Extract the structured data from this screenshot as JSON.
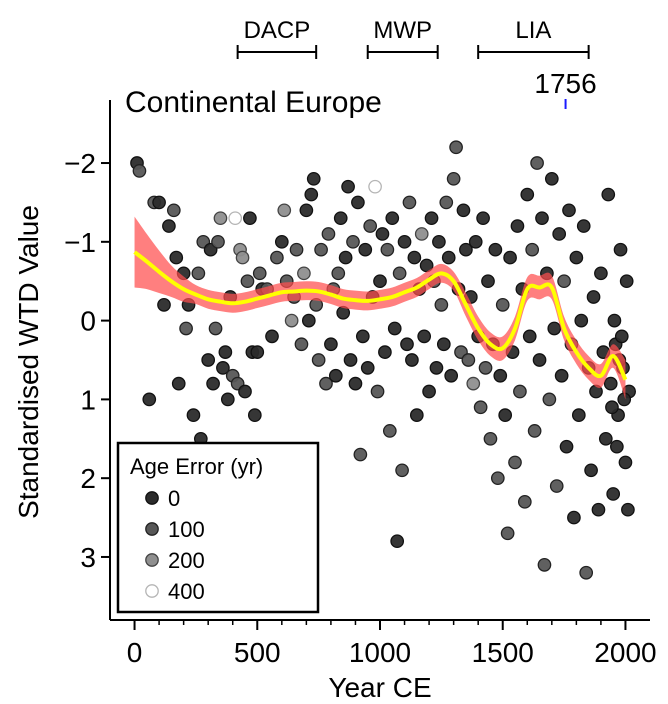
{
  "chart_data": {
    "type": "scatter",
    "title": "Continental Europe",
    "xlabel": "Year CE",
    "ylabel": "Standardised WTD Value",
    "xlim": [
      -100,
      2100
    ],
    "ylim": [
      -2.8,
      3.8
    ],
    "y_inverted": true,
    "xticks": [
      0,
      500,
      1000,
      1500,
      2000
    ],
    "xminorticks": [
      100,
      200,
      300,
      400,
      600,
      700,
      800,
      900,
      1100,
      1200,
      1300,
      1400,
      1600,
      1700,
      1800,
      1900
    ],
    "yticks": [
      {
        "value": -2,
        "label": "−2"
      },
      {
        "value": -1,
        "label": "−1"
      },
      0,
      1,
      2,
      3
    ],
    "x": [
      10,
      20,
      60,
      80,
      100,
      120,
      140,
      160,
      170,
      180,
      200,
      210,
      220,
      240,
      260,
      270,
      280,
      300,
      310,
      320,
      330,
      340,
      350,
      360,
      370,
      380,
      390,
      400,
      410,
      420,
      430,
      440,
      450,
      460,
      470,
      480,
      490,
      500,
      510,
      520,
      540,
      560,
      580,
      600,
      610,
      620,
      640,
      650,
      660,
      680,
      690,
      700,
      710,
      720,
      730,
      740,
      750,
      760,
      780,
      790,
      800,
      810,
      820,
      830,
      840,
      850,
      860,
      870,
      880,
      890,
      900,
      910,
      920,
      930,
      940,
      950,
      960,
      970,
      980,
      990,
      1000,
      1010,
      1020,
      1030,
      1040,
      1050,
      1060,
      1070,
      1080,
      1090,
      1100,
      1110,
      1120,
      1130,
      1140,
      1150,
      1160,
      1170,
      1180,
      1190,
      1200,
      1210,
      1220,
      1230,
      1240,
      1250,
      1260,
      1270,
      1280,
      1290,
      1300,
      1310,
      1320,
      1330,
      1340,
      1350,
      1360,
      1370,
      1380,
      1390,
      1400,
      1410,
      1420,
      1430,
      1440,
      1450,
      1460,
      1470,
      1480,
      1490,
      1500,
      1510,
      1520,
      1530,
      1540,
      1550,
      1560,
      1570,
      1580,
      1590,
      1600,
      1610,
      1620,
      1630,
      1640,
      1650,
      1660,
      1670,
      1680,
      1690,
      1700,
      1710,
      1720,
      1730,
      1740,
      1750,
      1760,
      1770,
      1780,
      1790,
      1800,
      1810,
      1820,
      1830,
      1840,
      1850,
      1860,
      1870,
      1880,
      1890,
      1900,
      1910,
      1920,
      1930,
      1940,
      1950,
      1960,
      1970,
      1980,
      1990,
      2000,
      2005,
      2010,
      2015,
      1985,
      1995,
      1975,
      1965,
      1955,
      1945
    ],
    "values": [
      -2.0,
      -1.9,
      1.0,
      -1.5,
      -1.5,
      -0.2,
      -1.2,
      -1.4,
      -0.8,
      0.8,
      -0.6,
      0.1,
      -0.2,
      1.2,
      -0.6,
      1.5,
      -1.0,
      0.5,
      -0.9,
      0.8,
      0.1,
      -1.0,
      -1.3,
      0.6,
      0.4,
      1.0,
      -0.3,
      0.7,
      -1.3,
      0.8,
      -0.9,
      -0.8,
      0.9,
      -0.5,
      -1.3,
      0.4,
      1.2,
      0.4,
      -0.6,
      -0.4,
      -0.4,
      0.2,
      -0.8,
      -1.0,
      -1.4,
      -0.5,
      0.0,
      -0.3,
      -0.9,
      0.3,
      -0.6,
      -1.4,
      0.0,
      -1.6,
      -1.8,
      -0.2,
      0.5,
      -0.9,
      0.8,
      -1.1,
      0.3,
      -0.4,
      0.7,
      -0.6,
      -1.3,
      -0.1,
      -0.8,
      -1.7,
      0.5,
      -1.0,
      0.8,
      -1.5,
      1.7,
      0.2,
      -0.9,
      0.6,
      -1.2,
      -0.3,
      -1.7,
      0.9,
      -0.5,
      -1.1,
      0.4,
      -0.9,
      1.4,
      -1.3,
      0.1,
      2.8,
      -0.6,
      1.9,
      -1.0,
      0.3,
      -1.5,
      0.5,
      -0.8,
      1.2,
      -0.4,
      -1.1,
      0.2,
      -0.7,
      0.9,
      -1.3,
      -0.5,
      0.6,
      -1.0,
      -0.2,
      0.3,
      -1.5,
      -0.8,
      0.7,
      -1.8,
      -2.2,
      -0.4,
      0.4,
      -1.4,
      -0.9,
      0.5,
      -0.3,
      0.8,
      -1.0,
      0.2,
      1.1,
      -1.3,
      0.6,
      -0.5,
      1.5,
      0.3,
      -0.9,
      2.0,
      0.7,
      -0.2,
      1.2,
      2.7,
      -0.8,
      0.4,
      1.8,
      -1.2,
      0.9,
      -0.4,
      2.3,
      -1.6,
      0.2,
      -0.9,
      1.4,
      -2.0,
      0.5,
      -1.3,
      3.1,
      -0.6,
      1.0,
      -1.8,
      0.1,
      2.1,
      -1.1,
      0.7,
      -0.5,
      1.6,
      -1.4,
      0.3,
      2.5,
      -0.8,
      1.2,
      0.0,
      -1.2,
      3.2,
      0.6,
      1.9,
      -0.3,
      0.9,
      2.4,
      -0.6,
      0.4,
      1.5,
      -1.6,
      0.8,
      2.2,
      0.3,
      1.2,
      -0.9,
      0.6,
      1.8,
      -0.5,
      2.4,
      0.9,
      0.2,
      1.0,
      0.5,
      1.6,
      0.0,
      1.1
    ],
    "age_error": [
      0,
      100,
      0,
      100,
      0,
      0,
      0,
      100,
      0,
      0,
      0,
      100,
      0,
      0,
      100,
      0,
      100,
      0,
      0,
      0,
      100,
      100,
      200,
      0,
      0,
      0,
      0,
      100,
      400,
      100,
      200,
      200,
      0,
      100,
      0,
      0,
      0,
      0,
      100,
      0,
      100,
      0,
      100,
      0,
      200,
      100,
      200,
      100,
      100,
      100,
      200,
      0,
      0,
      0,
      0,
      100,
      100,
      100,
      100,
      100,
      0,
      100,
      0,
      100,
      0,
      0,
      0,
      0,
      0,
      100,
      0,
      0,
      100,
      0,
      0,
      0,
      100,
      0,
      400,
      100,
      0,
      0,
      0,
      100,
      100,
      0,
      0,
      0,
      100,
      100,
      0,
      0,
      100,
      0,
      0,
      0,
      0,
      200,
      0,
      0,
      0,
      0,
      100,
      0,
      0,
      100,
      0,
      100,
      0,
      0,
      100,
      100,
      0,
      100,
      0,
      0,
      100,
      0,
      200,
      0,
      0,
      100,
      0,
      100,
      0,
      100,
      0,
      0,
      100,
      0,
      100,
      0,
      100,
      0,
      0,
      100,
      0,
      100,
      0,
      100,
      0,
      0,
      100,
      100,
      100,
      0,
      0,
      100,
      0,
      100,
      0,
      0,
      100,
      0,
      0,
      100,
      0,
      0,
      100,
      0,
      0,
      0,
      0,
      0,
      100,
      0,
      0,
      0,
      0,
      0,
      0,
      0,
      0,
      0,
      0,
      0,
      0,
      0,
      0,
      0,
      0,
      0,
      0,
      0,
      0,
      0,
      0,
      0,
      0,
      0
    ],
    "legend": {
      "title": "Age Error (yr)",
      "position": "lower left",
      "levels": [
        0,
        100,
        200,
        400
      ],
      "colors": [
        "#2b2b2b",
        "#575757",
        "#8f8f8f",
        "#ffffff"
      ],
      "edge_colors": [
        "#111111",
        "#222222",
        "#444444",
        "#b5b5b5"
      ]
    },
    "smooth": {
      "line_color": "#ffff00",
      "band_color": "#ff4d4d",
      "x": [
        0,
        50,
        100,
        150,
        200,
        250,
        300,
        350,
        400,
        450,
        500,
        550,
        600,
        650,
        700,
        750,
        800,
        850,
        900,
        950,
        1000,
        1050,
        1100,
        1150,
        1200,
        1250,
        1300,
        1350,
        1400,
        1450,
        1500,
        1550,
        1600,
        1650,
        1700,
        1750,
        1800,
        1850,
        1900,
        1950,
        2000
      ],
      "values": [
        -0.87,
        -0.75,
        -0.62,
        -0.5,
        -0.4,
        -0.33,
        -0.27,
        -0.24,
        -0.22,
        -0.24,
        -0.28,
        -0.32,
        -0.36,
        -0.37,
        -0.38,
        -0.37,
        -0.33,
        -0.28,
        -0.26,
        -0.25,
        -0.27,
        -0.3,
        -0.36,
        -0.42,
        -0.52,
        -0.6,
        -0.5,
        -0.2,
        0.1,
        0.3,
        0.35,
        0.1,
        -0.4,
        -0.42,
        -0.42,
        0.1,
        0.4,
        0.6,
        0.7,
        0.45,
        0.75
      ],
      "lower": [
        -1.32,
        -1.1,
        -0.89,
        -0.7,
        -0.56,
        -0.45,
        -0.39,
        -0.36,
        -0.34,
        -0.36,
        -0.4,
        -0.44,
        -0.48,
        -0.49,
        -0.5,
        -0.49,
        -0.45,
        -0.4,
        -0.38,
        -0.37,
        -0.39,
        -0.42,
        -0.48,
        -0.54,
        -0.64,
        -0.72,
        -0.62,
        -0.35,
        -0.05,
        0.15,
        0.2,
        -0.05,
        -0.55,
        -0.57,
        -0.57,
        -0.05,
        0.25,
        0.45,
        0.55,
        0.3,
        0.5
      ],
      "upper": [
        -0.42,
        -0.4,
        -0.35,
        -0.3,
        -0.24,
        -0.21,
        -0.15,
        -0.12,
        -0.1,
        -0.12,
        -0.16,
        -0.2,
        -0.24,
        -0.25,
        -0.26,
        -0.25,
        -0.21,
        -0.16,
        -0.14,
        -0.13,
        -0.15,
        -0.18,
        -0.24,
        -0.3,
        -0.4,
        -0.48,
        -0.38,
        -0.05,
        0.25,
        0.45,
        0.5,
        0.25,
        -0.25,
        -0.27,
        -0.27,
        0.25,
        0.55,
        0.75,
        0.85,
        0.6,
        1.0
      ]
    },
    "periods": [
      {
        "label": "DACP",
        "start": 420,
        "end": 740
      },
      {
        "label": "MWP",
        "start": 950,
        "end": 1235
      },
      {
        "label": "LIA",
        "start": 1400,
        "end": 1850
      }
    ],
    "annotation": {
      "label": "1756",
      "x": 1756,
      "color": "#1a1aff"
    }
  }
}
